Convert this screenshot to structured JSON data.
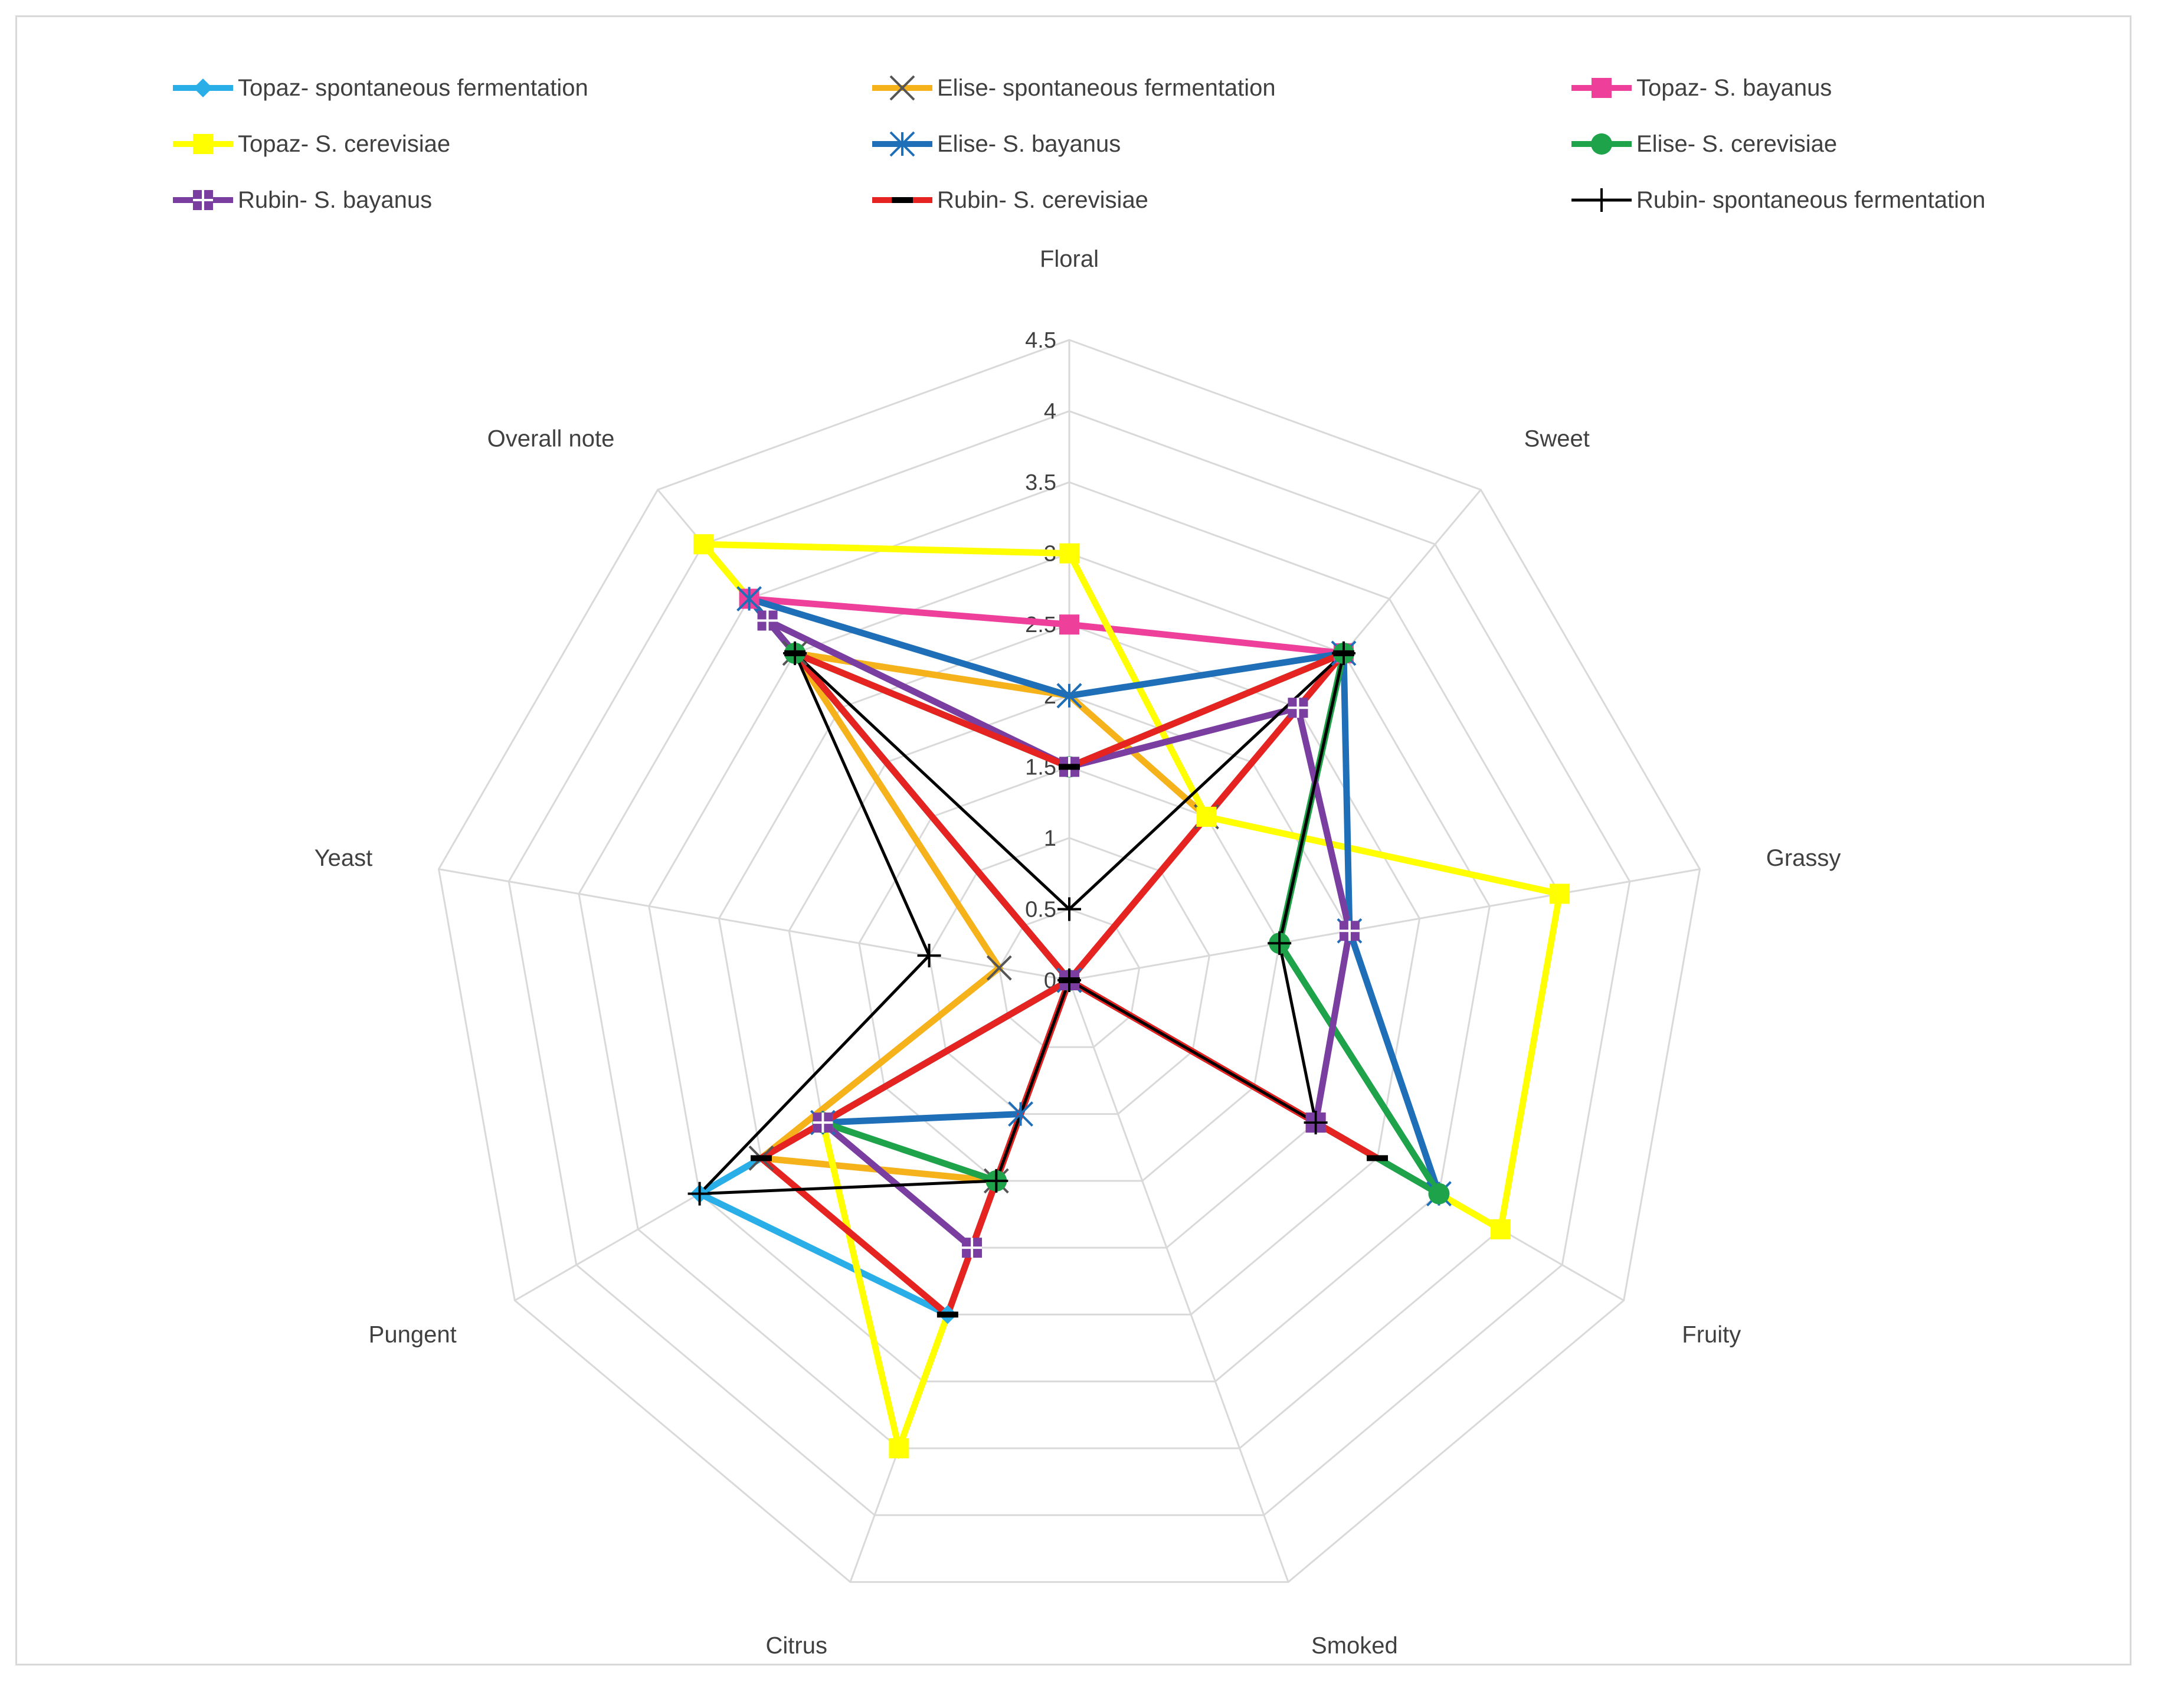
{
  "chart_data": {
    "type": "radar",
    "title": "",
    "axes": [
      "Floral",
      "Sweet",
      "Grassy",
      "Fruity",
      "Smoked",
      "Citrus",
      "Pungent",
      "Yeast",
      "Overall note"
    ],
    "rlim": [
      0,
      4.5
    ],
    "ticks": [
      "0",
      "0.5",
      "1",
      "1.5",
      "2",
      "2.5",
      "3",
      "3.5",
      "4",
      "4.5"
    ],
    "tick_values": [
      0,
      0.5,
      1,
      1.5,
      2,
      2.5,
      3,
      3.5,
      4,
      4.5
    ],
    "legend_position": "top",
    "series": [
      {
        "name": "Topaz- spontaneous fermentation",
        "color": "#29aee8",
        "marker": "diamond",
        "values": [
          0,
          0,
          0,
          0,
          0,
          2.5,
          3.0,
          0,
          0
        ]
      },
      {
        "name": "Elise- spontaneous fermentation",
        "color": "#f5b21b",
        "marker": "x",
        "values": [
          2.0,
          1.5,
          0,
          0,
          0,
          1.5,
          2.5,
          0.5,
          3.0
        ]
      },
      {
        "name": "Topaz- S. bayanus",
        "color": "#ee3f9b",
        "marker": "square",
        "values": [
          2.5,
          3.0,
          0,
          2.0,
          0,
          0,
          0,
          0,
          3.5
        ]
      },
      {
        "name": "Topaz- S. cerevisiae",
        "color": "#ffff00",
        "marker": "square",
        "values": [
          3.0,
          1.5,
          3.5,
          3.5,
          0,
          3.5,
          2.0,
          0,
          4.0
        ]
      },
      {
        "name": "Elise- S. bayanus",
        "color": "#1f6fb8",
        "marker": "star",
        "values": [
          2.0,
          3.0,
          2.0,
          3.0,
          0,
          1.0,
          2.0,
          0,
          3.5
        ]
      },
      {
        "name": "Elise- S. cerevisiae",
        "color": "#1ea24a",
        "marker": "circle",
        "values": [
          1.5,
          3.0,
          1.5,
          3.0,
          0,
          1.5,
          2.0,
          0,
          3.0
        ]
      },
      {
        "name": "Rubin- S. bayanus",
        "color": "#7a3ea1",
        "marker": "square-plus",
        "values": [
          1.5,
          2.5,
          2.0,
          2.0,
          0,
          2.0,
          2.0,
          0,
          3.3
        ]
      },
      {
        "name": "Rubin- S. cerevisiae",
        "color": "#e52321",
        "marker": "dash",
        "values": [
          1.5,
          3.0,
          0,
          2.5,
          0,
          2.5,
          2.5,
          0,
          3.0
        ]
      },
      {
        "name": "Rubin- spontaneous fermentation",
        "color": "#000000",
        "marker": "plus",
        "values": [
          0.5,
          3.0,
          1.5,
          2.0,
          0,
          1.5,
          3.0,
          1.0,
          3.0
        ]
      }
    ]
  }
}
